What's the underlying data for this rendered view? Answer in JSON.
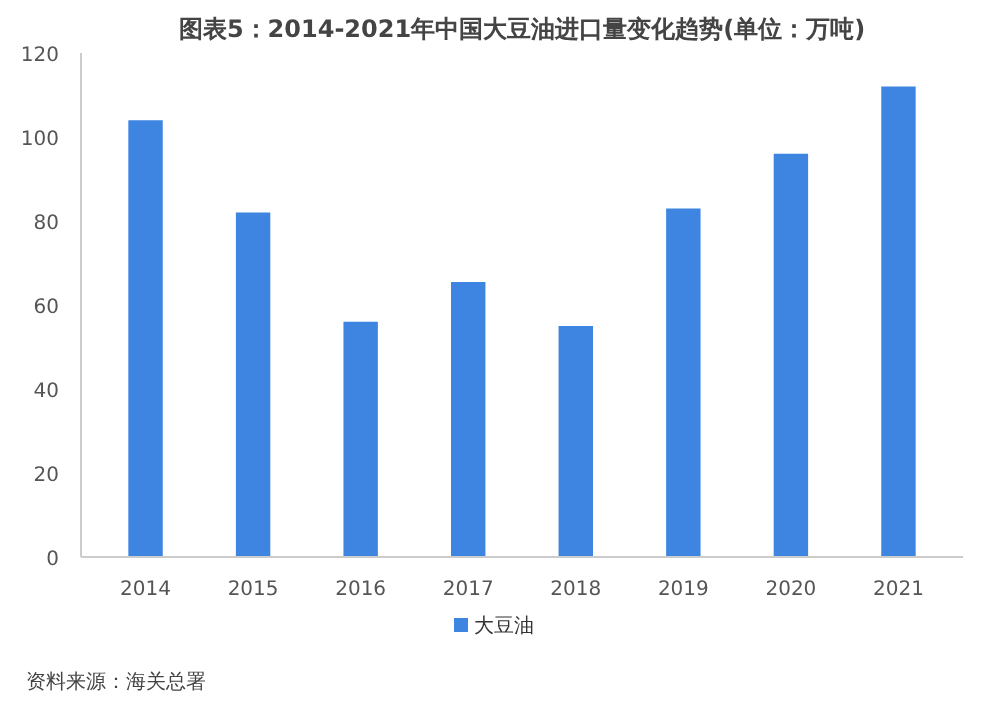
{
  "chart_data": {
    "type": "bar",
    "title": "图表5：2014-2021年中国大豆油进口量变化趋势(单位：万吨)",
    "categories": [
      "2014",
      "2015",
      "2016",
      "2017",
      "2018",
      "2019",
      "2020",
      "2021"
    ],
    "series": [
      {
        "name": "大豆油",
        "color": "#3d85e0",
        "values": [
          104,
          82,
          56,
          65.5,
          55,
          83,
          96,
          112
        ]
      }
    ],
    "ylim": [
      0,
      120
    ],
    "yticks": [
      0,
      20,
      40,
      60,
      80,
      100,
      120
    ],
    "grid": false,
    "legend": "bottom",
    "annotations": [
      "资料来源：海关总署"
    ]
  }
}
